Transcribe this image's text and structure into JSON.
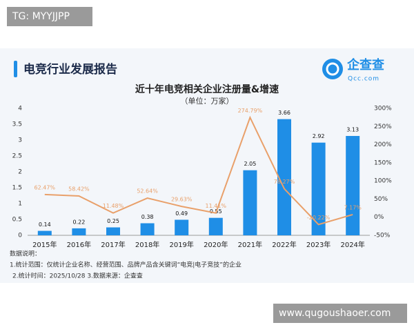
{
  "watermark_top": "TG: MYYJJPP",
  "watermark_bottom": "www.qugoushaoer.com",
  "header": {
    "title": "电竞行业发展报告",
    "logo": "企查查",
    "logo_sub": "Qcc.com"
  },
  "chart_data": {
    "type": "bar",
    "title": "近十年电竞相关企业注册量&增速",
    "subtitle": "（单位：万家）",
    "categories": [
      "2015年",
      "2016年",
      "2017年",
      "2018年",
      "2019年",
      "2020年",
      "2021年",
      "2022年",
      "2023年",
      "2024年"
    ],
    "series": [
      {
        "type": "bar",
        "color": "#1f8ee6",
        "values": [
          0.14,
          0.22,
          0.25,
          0.38,
          0.49,
          0.55,
          2.05,
          3.66,
          2.92,
          3.13
        ]
      },
      {
        "type": "line",
        "axis": "y2",
        "color": "#e9a06a",
        "values": [
          62.47,
          58.42,
          11.48,
          52.64,
          29.63,
          11.41,
          274.79,
          78.27,
          -20.22,
          7.17
        ],
        "value_labels": [
          "62.47%",
          "58.42%",
          "11.48%",
          "52.64%",
          "29.63%",
          "11.41%",
          "274.79%",
          "78.27%",
          "-20.22%",
          "7.17%"
        ]
      }
    ],
    "ylim": [
      0,
      4
    ],
    "yticks": [
      0,
      0.5,
      1,
      1.5,
      2,
      2.5,
      3,
      3.5,
      4
    ],
    "y2lim": [
      -50,
      300
    ],
    "y2ticks": [
      {
        "value": -50,
        "label": "-50%"
      },
      {
        "value": 0,
        "label": "0%"
      },
      {
        "value": 50,
        "label": "50%"
      },
      {
        "value": 100,
        "label": "100%"
      },
      {
        "value": 150,
        "label": "150%"
      },
      {
        "value": 200,
        "label": "200%"
      },
      {
        "value": 250,
        "label": "250%"
      },
      {
        "value": 300,
        "label": "300%"
      }
    ]
  },
  "notes": {
    "heading": "数据说明：",
    "lines": [
      "1.统计范围：仅统计企业名称、经营范围、品牌产品含关键词“电竞|电子竞技”的企业",
      "2.统计时间：2025/10/28 3.数据来源：企查查"
    ]
  }
}
